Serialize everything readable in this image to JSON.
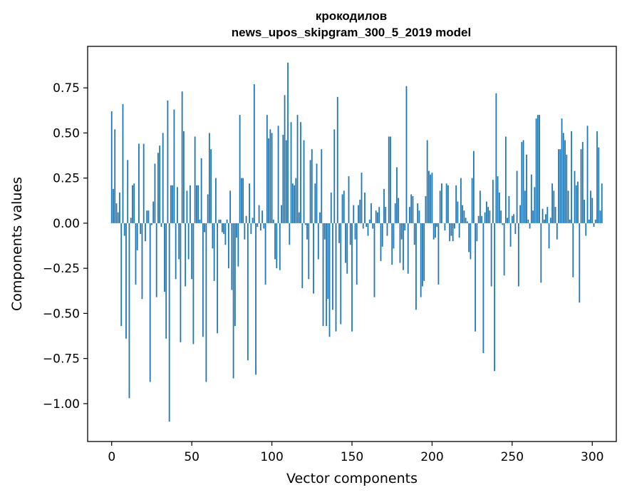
{
  "chart_data": {
    "type": "bar",
    "title": "крокодилов",
    "subtitle": "news_upos_skipgram_300_5_2019 model",
    "xlabel": "Vector components",
    "ylabel": "Components values",
    "xlim": [
      -15,
      315
    ],
    "ylim": [
      -1.21,
      0.98
    ],
    "xticks": [
      0,
      50,
      100,
      150,
      200,
      250,
      300
    ],
    "yticks": [
      -1.0,
      -0.75,
      -0.5,
      -0.25,
      0.0,
      0.25,
      0.5,
      0.75
    ],
    "ytick_labels": [
      "−1.00",
      "−0.75",
      "−0.50",
      "−0.25",
      "0.00",
      "0.25",
      "0.50",
      "0.75"
    ],
    "grid": false,
    "bar_color": "#1f77b4",
    "values": [
      0.62,
      0.19,
      0.52,
      0.11,
      0.06,
      0.17,
      -0.57,
      0.66,
      -0.07,
      -0.64,
      0.35,
      -0.97,
      0.03,
      0.21,
      0.22,
      -0.34,
      -0.15,
      0.44,
      -0.06,
      -0.42,
      0.44,
      -0.1,
      0.07,
      0.07,
      -0.88,
      -0.01,
      0.12,
      0.33,
      -0.41,
      0.39,
      0.43,
      -0.02,
      0.5,
      -0.38,
      -0.64,
      0.68,
      -1.1,
      0.21,
      0.21,
      0.63,
      -0.31,
      0.2,
      -0.2,
      -0.66,
      0.73,
      0.51,
      -0.35,
      0.18,
      -0.2,
      0.21,
      -0.31,
      -0.67,
      0.48,
      0.21,
      0.21,
      0.02,
      0.36,
      -0.63,
      -0.05,
      -0.88,
      0.16,
      0.5,
      0.41,
      -0.14,
      -0.32,
      0.25,
      -0.61,
      0.02,
      0.02,
      -0.05,
      -0.06,
      -0.12,
      0.02,
      -0.25,
      0.18,
      -0.37,
      -0.86,
      -0.57,
      -0.08,
      -0.24,
      0.6,
      0.25,
      0.25,
      -0.09,
      0.04,
      -0.76,
      0.22,
      -0.06,
      0.03,
      0.77,
      -0.84,
      -0.02,
      0.1,
      -0.04,
      0.07,
      -0.03,
      -0.34,
      0.6,
      0.47,
      0.52,
      0.5,
      0.02,
      -0.2,
      -0.25,
      0.54,
      -0.26,
      0.1,
      0.49,
      0.71,
      0.46,
      0.89,
      -0.12,
      0.56,
      0.22,
      0.21,
      0.25,
      0.6,
      0.06,
      0.56,
      -0.36,
      0.46,
      -0.01,
      -0.09,
      -0.31,
      0.35,
      0.41,
      -0.39,
      0.22,
      0.33,
      -0.2,
      0.06,
      0.41,
      -0.57,
      -0.09,
      -0.57,
      -0.42,
      -0.63,
      0.17,
      -0.48,
      0.52,
      -0.6,
      0.7,
      -0.11,
      -0.56,
      0.16,
      0.18,
      -0.22,
      -0.28,
      0.26,
      -0.12,
      -0.6,
      0.1,
      -0.09,
      -0.34,
      0.1,
      0.13,
      0.28,
      -0.03,
      0.17,
      -0.02,
      -0.07,
      0.02,
      0.11,
      -0.03,
      -0.41,
      0.07,
      0.06,
      0.09,
      -0.21,
      -0.13,
      0.19,
      0.09,
      -0.07,
      0.48,
      0.48,
      -0.23,
      -0.14,
      0.11,
      0.31,
      0.14,
      -0.22,
      -0.09,
      -0.26,
      -0.04,
      0.76,
      -0.28,
      0.09,
      0.16,
      0.15,
      -0.12,
      -0.48,
      0.11,
      0.07,
      -0.41,
      -0.35,
      -0.32,
      0.15,
      0.46,
      0.29,
      0.27,
      0.28,
      -0.09,
      -0.08,
      -0.02,
      -0.34,
      0.18,
      0.22,
      0.0,
      -0.04,
      0.22,
      0.21,
      -0.1,
      -0.07,
      -0.1,
      -0.03,
      0.21,
      0.12,
      -0.08,
      0.25,
      0.1,
      0.07,
      0.03,
      0.01,
      -0.16,
      -0.2,
      0.25,
      0.4,
      -0.6,
      -0.1,
      0.04,
      0.18,
      0.04,
      -0.72,
      0.06,
      0.12,
      0.09,
      0.07,
      -0.35,
      0.24,
      -0.82,
      0.72,
      0.26,
      0.17,
      0.07,
      -0.01,
      -0.29,
      0.48,
      0.03,
      0.15,
      -0.13,
      0.04,
      0.05,
      -0.06,
      0.29,
      -0.35,
      0.1,
      0.45,
      0.46,
      0.18,
      0.38,
      0.02,
      -0.03,
      0.27,
      0.07,
      0.2,
      0.58,
      0.6,
      0.6,
      -0.33,
      0.08,
      0.02,
      0.05,
      0.09,
      -0.14,
      0.03,
      0.22,
      0.18,
      0.09,
      -0.09,
      0.41,
      0.41,
      0.58,
      0.5,
      0.46,
      0.38,
      0.18,
      0.02,
      0.51,
      -0.3,
      0.29,
      0.21,
      0.23,
      -0.44,
      0.41,
      0.45,
      0.13,
      -0.07,
      0.54,
      0.02,
      0.18,
      0.14,
      -0.02,
      0.02,
      0.51,
      0.42,
      0.07,
      0.22
    ]
  }
}
